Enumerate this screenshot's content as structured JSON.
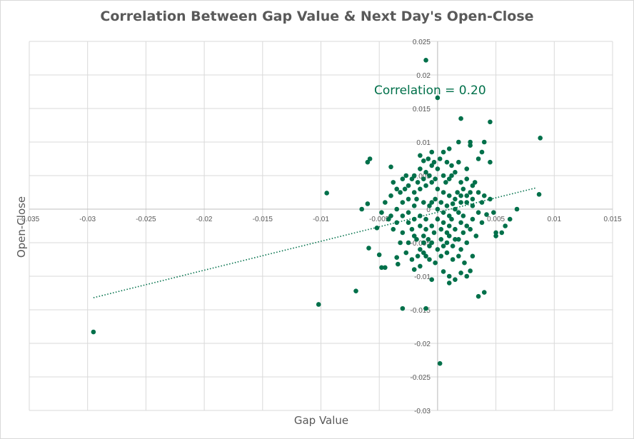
{
  "chart_data": {
    "type": "scatter",
    "title": "Correlation Between Gap Value & Next Day's Open-Close",
    "xlabel": "Gap Value",
    "ylabel": "Open-Close",
    "xlim": [
      -0.035,
      0.015
    ],
    "ylim": [
      -0.03,
      0.025
    ],
    "x_ticks": [
      "-0.035",
      "-0.03",
      "-0.025",
      "-0.02",
      "-0.015",
      "-0.01",
      "-0.005",
      "0",
      "0.005",
      "0.01",
      "0.015"
    ],
    "y_ticks": [
      "0.025",
      "0.02",
      "0.015",
      "0.01",
      "0.005",
      "0",
      "-0.005",
      "-0.01",
      "-0.015",
      "-0.02",
      "-0.025",
      "-0.03"
    ],
    "grid": true,
    "annotation": "Correlation = 0.20",
    "trendline": {
      "style": "dotted",
      "x": [
        -0.0295,
        0.0085
      ],
      "y": [
        -0.0132,
        0.0032
      ]
    },
    "colors": {
      "points": "#00704A",
      "grid": "#d9d9d9",
      "axis_text": "#595959"
    },
    "series": [
      {
        "points": [
          [
            -0.0295,
            -0.0183
          ],
          [
            -0.0102,
            -0.0142
          ],
          [
            -0.0095,
            0.0024
          ],
          [
            -0.007,
            -0.0122
          ],
          [
            -0.0065,
            0.0
          ],
          [
            -0.006,
            0.007
          ],
          [
            -0.0058,
            0.0075
          ],
          [
            -0.006,
            0.0008
          ],
          [
            -0.0059,
            -0.0058
          ],
          [
            -0.0052,
            -0.0028
          ],
          [
            -0.005,
            -0.0068
          ],
          [
            -0.0048,
            -0.0087
          ],
          [
            -0.0045,
            -0.0087
          ],
          [
            -0.004,
            0.0063
          ],
          [
            -0.0038,
            0.004
          ],
          [
            -0.0035,
            -0.0072
          ],
          [
            -0.0034,
            -0.0082
          ],
          [
            -0.003,
            -0.0148
          ],
          [
            -0.001,
            0.0222
          ],
          [
            -0.001,
            -0.0148
          ],
          [
            0.0,
            0.0166
          ],
          [
            0.002,
            0.0135
          ],
          [
            0.0045,
            0.013
          ],
          [
            0.0088,
            0.0106
          ],
          [
            0.0028,
            0.01
          ],
          [
            0.0028,
            0.0095
          ],
          [
            0.004,
            0.01
          ],
          [
            0.0038,
            0.0085
          ],
          [
            0.0045,
            0.007
          ],
          [
            0.0035,
            0.0075
          ],
          [
            0.0018,
            0.01
          ],
          [
            -0.0005,
            0.0085
          ],
          [
            -0.0015,
            0.008
          ],
          [
            0.0005,
            0.0085
          ],
          [
            0.001,
            0.009
          ],
          [
            0.004,
            0.002
          ],
          [
            0.0045,
            0.0015
          ],
          [
            0.0048,
            -0.0005
          ],
          [
            0.005,
            -0.0035
          ],
          [
            0.005,
            -0.004
          ],
          [
            0.0055,
            -0.0035
          ],
          [
            0.0058,
            -0.0025
          ],
          [
            0.0062,
            -0.0015
          ],
          [
            0.0068,
            0.0
          ],
          [
            0.0087,
            0.0022
          ],
          [
            0.0035,
            -0.013
          ],
          [
            0.004,
            -0.0124
          ],
          [
            0.002,
            -0.0095
          ],
          [
            0.0025,
            -0.01
          ],
          [
            0.0015,
            -0.0105
          ],
          [
            0.0002,
            -0.023
          ],
          [
            0.001,
            -0.011
          ],
          [
            -0.0005,
            -0.0105
          ],
          [
            0.0005,
            -0.0093
          ],
          [
            0.001,
            -0.01
          ],
          [
            -0.0015,
            -0.0085
          ],
          [
            -0.002,
            -0.009
          ],
          [
            0.0028,
            -0.0092
          ],
          [
            0.003,
            -0.007
          ],
          [
            0.0025,
            -0.005
          ],
          [
            0.002,
            -0.006
          ],
          [
            0.0015,
            -0.0045
          ],
          [
            0.001,
            -0.004
          ],
          [
            0.0005,
            -0.0055
          ],
          [
            0.0,
            -0.006
          ],
          [
            -0.0005,
            -0.005
          ],
          [
            -0.001,
            -0.007
          ],
          [
            -0.0015,
            -0.006
          ],
          [
            -0.002,
            -0.004
          ],
          [
            -0.0025,
            -0.005
          ],
          [
            -0.003,
            -0.0035
          ],
          [
            -0.0035,
            -0.002
          ],
          [
            -0.004,
            -0.001
          ],
          [
            -0.0045,
            0.001
          ],
          [
            -0.004,
            0.002
          ],
          [
            -0.0035,
            0.003
          ],
          [
            -0.003,
            0.0045
          ],
          [
            -0.0025,
            0.0035
          ],
          [
            -0.002,
            0.005
          ],
          [
            -0.0015,
            0.006
          ],
          [
            -0.001,
            0.0055
          ],
          [
            -0.0005,
            0.0065
          ],
          [
            0.0,
            0.006
          ],
          [
            0.0005,
            0.005
          ],
          [
            0.001,
            0.0045
          ],
          [
            0.0015,
            0.0055
          ],
          [
            0.002,
            0.004
          ],
          [
            0.0025,
            0.0045
          ],
          [
            0.003,
            0.0035
          ],
          [
            0.0035,
            0.0025
          ],
          [
            0.003,
            0.0015
          ],
          [
            0.0025,
            0.002
          ],
          [
            0.002,
            0.001
          ],
          [
            0.0015,
            0.0
          ],
          [
            0.001,
            -0.001
          ],
          [
            0.0005,
            -0.0005
          ],
          [
            0.0,
            0.0
          ],
          [
            -0.0005,
            0.001
          ],
          [
            -0.001,
            -0.0015
          ],
          [
            -0.0015,
            -0.001
          ],
          [
            -0.002,
            0.0005
          ],
          [
            -0.0025,
            -0.0005
          ],
          [
            -0.003,
            0.001
          ],
          [
            -0.0025,
            0.0015
          ],
          [
            -0.002,
            0.0025
          ],
          [
            -0.0015,
            0.003
          ],
          [
            -0.001,
            0.0035
          ],
          [
            -0.0005,
            0.004
          ],
          [
            0.0,
            0.003
          ],
          [
            0.0005,
            0.0025
          ],
          [
            0.001,
            0.002
          ],
          [
            0.0015,
            0.0015
          ],
          [
            0.002,
            0.002
          ],
          [
            0.0025,
            0.001
          ],
          [
            0.003,
            0.0005
          ],
          [
            0.0035,
            -0.0005
          ],
          [
            0.003,
            -0.0015
          ],
          [
            0.0025,
            -0.0025
          ],
          [
            0.002,
            -0.002
          ],
          [
            0.0015,
            -0.003
          ],
          [
            0.001,
            -0.0025
          ],
          [
            0.0005,
            -0.002
          ],
          [
            0.0,
            -0.0015
          ],
          [
            -0.0005,
            -0.0025
          ],
          [
            -0.001,
            -0.003
          ],
          [
            -0.0015,
            -0.0025
          ],
          [
            -0.002,
            -0.0015
          ],
          [
            -0.0025,
            -0.002
          ],
          [
            -0.003,
            -0.001
          ],
          [
            -0.0035,
            0.0
          ],
          [
            -0.0032,
            0.0025
          ],
          [
            -0.0028,
            0.003
          ],
          [
            -0.0022,
            -0.003
          ],
          [
            -0.0018,
            -0.0045
          ],
          [
            -0.0012,
            -0.004
          ],
          [
            -0.0008,
            -0.0045
          ],
          [
            -0.0003,
            -0.0035
          ],
          [
            0.0003,
            -0.003
          ],
          [
            0.0008,
            -0.0035
          ],
          [
            0.0012,
            -0.0015
          ],
          [
            0.0018,
            -0.0005
          ],
          [
            0.0022,
            0.003
          ],
          [
            0.0028,
            0.0025
          ],
          [
            0.0032,
            0.004
          ],
          [
            0.0025,
            0.006
          ],
          [
            0.0018,
            0.007
          ],
          [
            0.0012,
            0.0065
          ],
          [
            0.0008,
            0.007
          ],
          [
            0.0002,
            0.0075
          ],
          [
            -0.0003,
            0.007
          ],
          [
            -0.0008,
            0.0075
          ],
          [
            -0.0012,
            0.0072
          ],
          [
            0.0012,
            0.005
          ],
          [
            0.0007,
            0.004
          ],
          [
            -0.0002,
            0.0045
          ],
          [
            -0.0007,
            0.005
          ],
          [
            -0.0012,
            0.0045
          ],
          [
            -0.0017,
            0.004
          ],
          [
            -0.0022,
            0.0045
          ],
          [
            -0.0027,
            0.005
          ],
          [
            -0.0018,
            0.0015
          ],
          [
            -0.0012,
            0.001
          ],
          [
            -0.0007,
            0.0005
          ],
          [
            -0.0002,
            0.0015
          ],
          [
            0.0003,
            0.001
          ],
          [
            0.0008,
            0.0005
          ],
          [
            0.0013,
            0.0008
          ],
          [
            0.0017,
            0.0025
          ],
          [
            0.0022,
            -0.001
          ],
          [
            0.0028,
            -0.003
          ],
          [
            0.0033,
            -0.004
          ],
          [
            0.0038,
            -0.002
          ],
          [
            0.0042,
            -0.0008
          ],
          [
            0.0038,
            0.001
          ],
          [
            -0.0038,
            -0.003
          ],
          [
            -0.0042,
            -0.0015
          ],
          [
            -0.0048,
            -0.0005
          ],
          [
            -0.0032,
            -0.005
          ],
          [
            -0.0027,
            -0.0065
          ],
          [
            -0.0022,
            -0.0075
          ],
          [
            -0.0017,
            -0.007
          ],
          [
            -0.0012,
            -0.0065
          ],
          [
            -0.0007,
            -0.0075
          ],
          [
            -0.0002,
            -0.008
          ],
          [
            0.0003,
            -0.007
          ],
          [
            0.0008,
            -0.0065
          ],
          [
            0.0013,
            -0.0075
          ],
          [
            0.0018,
            -0.007
          ],
          [
            0.0023,
            -0.008
          ],
          [
            0.0008,
            -0.005
          ],
          [
            0.0013,
            -0.0055
          ],
          [
            0.0018,
            -0.0045
          ],
          [
            0.0022,
            -0.0035
          ],
          [
            0.0003,
            -0.0045
          ],
          [
            -0.0007,
            -0.0055
          ],
          [
            -0.0012,
            -0.005
          ]
        ]
      }
    ]
  }
}
